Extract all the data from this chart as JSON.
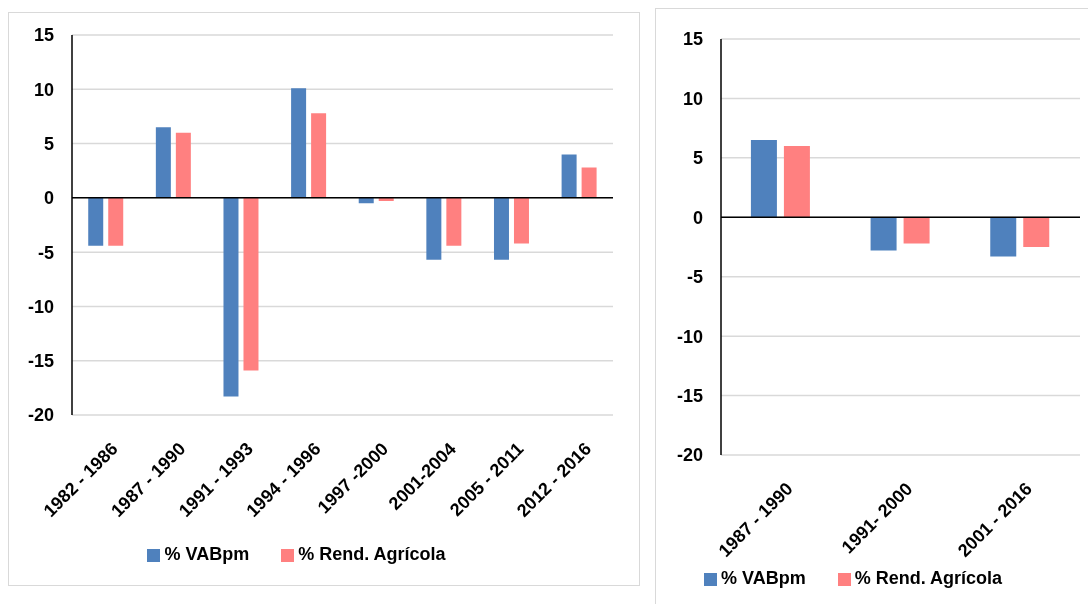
{
  "chart_data": [
    {
      "type": "bar",
      "categories": [
        "1982 - 1986",
        "1987 - 1990",
        "1991 - 1993",
        "1994 - 1996",
        "1997 -2000",
        "2001-2004",
        "2005 - 2011",
        "2012 - 2016"
      ],
      "series": [
        {
          "name": "% VABpm",
          "color": "#4f81bd",
          "values": [
            -4.4,
            6.5,
            -18.3,
            10.1,
            -0.5,
            -5.7,
            -5.7,
            4.0
          ]
        },
        {
          "name": "% Rend. Agrícola",
          "color": "#ff8080",
          "values": [
            -4.4,
            6.0,
            -15.9,
            7.8,
            -0.3,
            -4.4,
            -4.2,
            2.8
          ]
        }
      ],
      "ylim": [
        -20,
        15
      ],
      "yticks": [
        -20,
        -15,
        -10,
        -5,
        0,
        5,
        10,
        15
      ],
      "grid": "y",
      "legend": "bottom"
    },
    {
      "type": "bar",
      "categories": [
        "1987 - 1990",
        "1991- 2000",
        "2001 - 2016"
      ],
      "series": [
        {
          "name": "% VABpm",
          "color": "#4f81bd",
          "values": [
            6.5,
            -2.8,
            -3.3
          ]
        },
        {
          "name": "% Rend. Agrícola",
          "color": "#ff8080",
          "values": [
            6.0,
            -2.2,
            -2.5
          ]
        }
      ],
      "ylim": [
        -20,
        15
      ],
      "yticks": [
        -20,
        -15,
        -10,
        -5,
        0,
        5,
        10,
        15
      ],
      "grid": "y",
      "legend": "bottom"
    }
  ]
}
